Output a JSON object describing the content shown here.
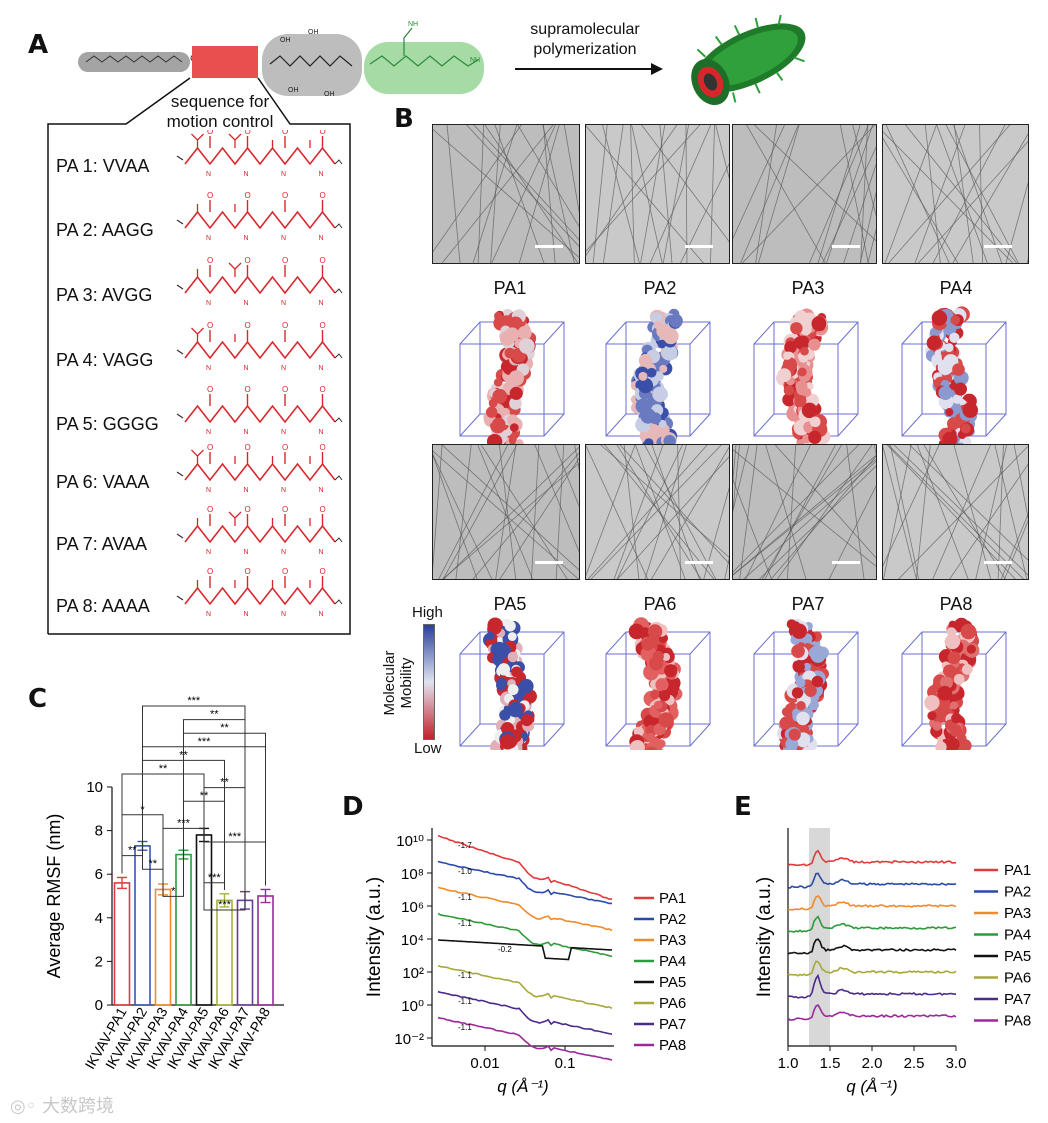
{
  "panel_a": {
    "letter": "A",
    "arrow_label_line1": "supramolecular",
    "arrow_label_line2": "polymerization",
    "sequence_label_line1": "sequence for",
    "sequence_label_line2": "motion control",
    "sequences": [
      {
        "label": "PA 1: VVAA"
      },
      {
        "label": "PA 2: AAGG"
      },
      {
        "label": "PA 3: AVGG"
      },
      {
        "label": "PA 4: VAGG"
      },
      {
        "label": "PA 5: GGGG"
      },
      {
        "label": "PA 6: VAAA"
      },
      {
        "label": "PA 7: AVAA"
      },
      {
        "label": "PA 8: AAAA"
      }
    ],
    "colors": {
      "motion_block": "#e8504f",
      "tail": "#9a9a9a",
      "charged": "#b8b8b8",
      "bioactive": "#9fd79f",
      "sequence": "#d8262d"
    }
  },
  "panel_b": {
    "letter": "B",
    "models_row1": [
      "PA1",
      "PA2",
      "PA3",
      "PA4"
    ],
    "models_row2": [
      "PA5",
      "PA6",
      "PA7",
      "PA8"
    ],
    "colorbar": {
      "high": "High",
      "low": "Low",
      "title_line1": "Molecular",
      "title_line2": "Mobility"
    }
  },
  "panel_c": {
    "letter": "C",
    "chart_data": {
      "type": "bar",
      "ylabel": "Average RMSF (nm)",
      "ylim": [
        0,
        10
      ],
      "yticks": [
        "0",
        "2",
        "4",
        "6",
        "8",
        "10"
      ],
      "categories": [
        "IKVAV-PA1",
        "IKVAV-PA2",
        "IKVAV-PA3",
        "IKVAV-PA4",
        "IKVAV-PA5",
        "IKVAV-PA6",
        "IKVAV-PA7",
        "IKVAV-PA8"
      ],
      "values": [
        5.6,
        7.3,
        5.3,
        6.9,
        7.8,
        4.8,
        4.8,
        5.0
      ],
      "errors": [
        0.25,
        0.2,
        0.25,
        0.2,
        0.3,
        0.3,
        0.4,
        0.3
      ],
      "colors": [
        "#e03a3a",
        "#3a55b0",
        "#f08a2a",
        "#2e9a3c",
        "#111111",
        "#a7b23a",
        "#6a3a9a",
        "#9a2a9a"
      ],
      "significance": [
        {
          "from": 1,
          "to": 6,
          "label": "***"
        },
        {
          "from": 3,
          "to": 6,
          "label": "**"
        },
        {
          "from": 3,
          "to": 7,
          "label": "**"
        },
        {
          "from": 1,
          "to": 7,
          "label": "***"
        },
        {
          "from": 1,
          "to": 5,
          "label": "**"
        },
        {
          "from": 0,
          "to": 4,
          "label": "**"
        },
        {
          "from": 4,
          "to": 6,
          "label": "**"
        },
        {
          "from": 3,
          "to": 5,
          "label": "**"
        },
        {
          "from": 0,
          "to": 2,
          "label": "*"
        },
        {
          "from": 2,
          "to": 4,
          "label": "***"
        },
        {
          "from": 4,
          "to": 7,
          "label": "***"
        },
        {
          "from": 0,
          "to": 1,
          "label": "**"
        },
        {
          "from": 1,
          "to": 2,
          "label": "**"
        },
        {
          "from": 4,
          "to": 5,
          "label": "***"
        },
        {
          "from": 2,
          "to": 3,
          "label": "*"
        },
        {
          "from": 4,
          "to": 6,
          "label": "***"
        }
      ]
    }
  },
  "panel_d": {
    "letter": "D",
    "chart_data": {
      "type": "line",
      "xlabel": "q (Å⁻¹)",
      "ylabel": "Intensity (a.u.)",
      "xscale": "log",
      "yscale": "log",
      "xticks": [
        "0.01",
        "0.1"
      ],
      "yticks": [
        "10¹⁰",
        "10⁸",
        "10⁶",
        "10⁴",
        "10²",
        "10⁰",
        "10⁻²"
      ],
      "slopes": [
        "-1.7",
        "-1.0",
        "-1.1",
        "-1.1",
        "-0.2",
        "-1.1",
        "-1.1",
        "-1.1"
      ],
      "series": [
        {
          "name": "PA1",
          "color": "#e03a3a"
        },
        {
          "name": "PA2",
          "color": "#2a4aa8"
        },
        {
          "name": "PA3",
          "color": "#f08a2a"
        },
        {
          "name": "PA4",
          "color": "#2e9a3c"
        },
        {
          "name": "PA5",
          "color": "#111111"
        },
        {
          "name": "PA6",
          "color": "#a7a83a"
        },
        {
          "name": "PA7",
          "color": "#4a2a8a"
        },
        {
          "name": "PA8",
          "color": "#9a2a9a"
        }
      ]
    }
  },
  "panel_e": {
    "letter": "E",
    "chart_data": {
      "type": "line",
      "xlabel": "q (Å⁻¹)",
      "ylabel": "Intensity (a.u.)",
      "xlim": [
        1.0,
        3.0
      ],
      "xticks": [
        "1.0",
        "1.5",
        "2.0",
        "2.5",
        "3.0"
      ],
      "highlight_range": [
        1.25,
        1.5
      ],
      "series": [
        {
          "name": "PA1",
          "color": "#e03a3a"
        },
        {
          "name": "PA2",
          "color": "#2a4aa8"
        },
        {
          "name": "PA3",
          "color": "#f08a2a"
        },
        {
          "name": "PA4",
          "color": "#2e9a3c"
        },
        {
          "name": "PA5",
          "color": "#111111"
        },
        {
          "name": "PA6",
          "color": "#a7a83a"
        },
        {
          "name": "PA7",
          "color": "#4a2a8a"
        },
        {
          "name": "PA8",
          "color": "#9a2a9a"
        }
      ]
    }
  },
  "watermark": "大数跨境"
}
